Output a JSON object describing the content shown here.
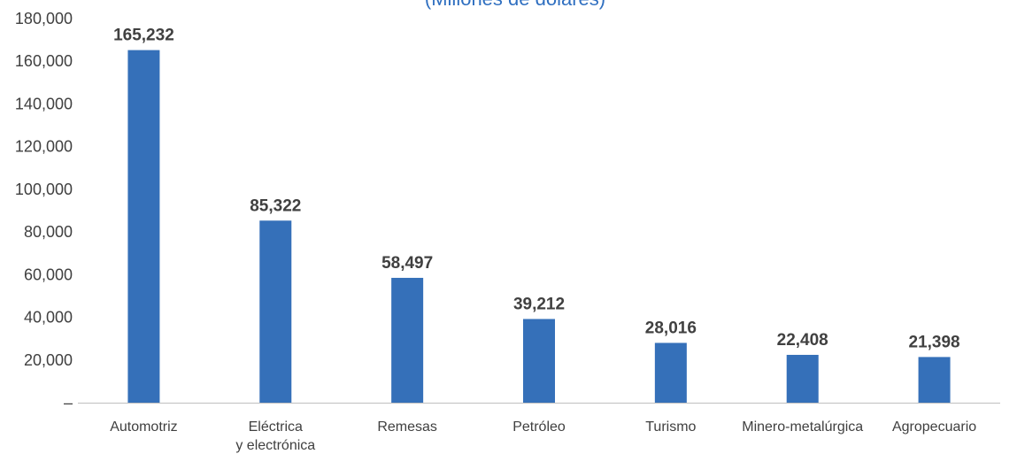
{
  "chart_data": {
    "type": "bar",
    "subtitle": "(Millones de dólares)",
    "categories": [
      [
        "Automotriz"
      ],
      [
        "Eléctrica",
        "y electrónica"
      ],
      [
        "Remesas"
      ],
      [
        "Petróleo"
      ],
      [
        "Turismo"
      ],
      [
        "Minero-metalúrgica"
      ],
      [
        "Agropecuario"
      ]
    ],
    "values": [
      165232,
      85322,
      58497,
      39212,
      28016,
      22408,
      21398
    ],
    "data_labels": [
      "165,232",
      "85,322",
      "58,497",
      "39,212",
      "28,016",
      "22,408",
      "21,398"
    ],
    "y_ticks": [
      0,
      20000,
      40000,
      60000,
      80000,
      100000,
      120000,
      140000,
      160000,
      180000
    ],
    "y_tick_labels": [
      "–",
      "20,000",
      "40,000",
      "60,000",
      "80,000",
      "100,000",
      "120,000",
      "140,000",
      "160,000",
      "180,000"
    ],
    "ylim": [
      0,
      180000
    ],
    "grid": false,
    "legend": "none",
    "colors": {
      "bar": "#3570b9",
      "subtitle": "#2f6fc0",
      "text": "#404040",
      "axis": "#bfbfbf"
    }
  }
}
